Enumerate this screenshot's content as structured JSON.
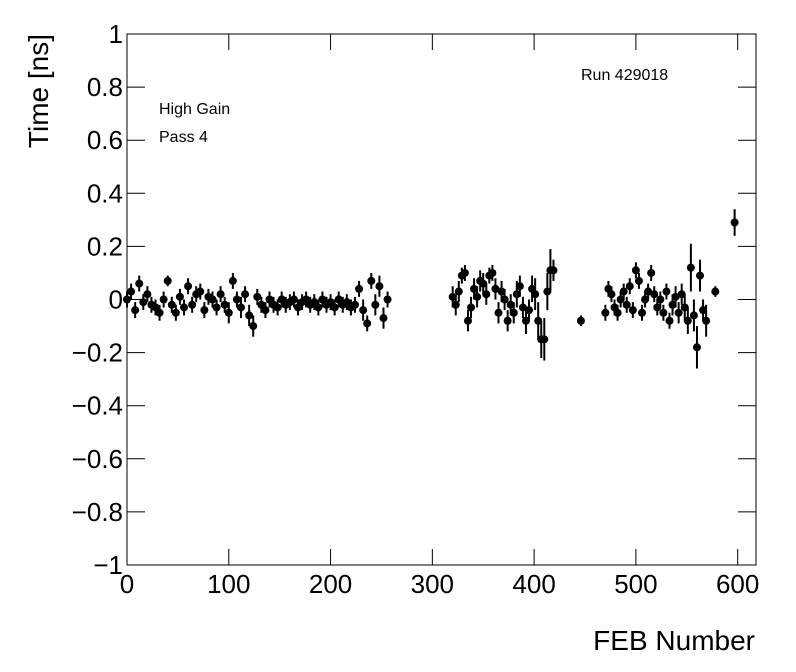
{
  "chart_data": {
    "type": "scatter",
    "x_label": "FEB Number",
    "y_label": "Time [ns]",
    "annotations": [
      "Run 429018",
      "High Gain",
      "Pass 4"
    ],
    "xlim": [
      0,
      618
    ],
    "ylim": [
      -1,
      1
    ],
    "xticks": [
      0,
      100,
      200,
      300,
      400,
      500,
      600
    ],
    "yticks": [
      {
        "value": -1,
        "label": "−1"
      },
      {
        "value": -0.8,
        "label": "−0.8"
      },
      {
        "value": -0.6,
        "label": "−0.6"
      },
      {
        "value": -0.4,
        "label": "−0.4"
      },
      {
        "value": -0.2,
        "label": "−0.2"
      },
      0,
      0.2,
      0.4,
      0.6,
      0.8,
      1
    ],
    "color": "#000000",
    "x": [
      0,
      4,
      8,
      12,
      16,
      20,
      24,
      28,
      32,
      36,
      40,
      44,
      48,
      52,
      56,
      60,
      64,
      68,
      72,
      76,
      80,
      84,
      88,
      92,
      96,
      100,
      104,
      108,
      112,
      116,
      120,
      124,
      128,
      132,
      136,
      140,
      144,
      148,
      152,
      156,
      160,
      164,
      168,
      172,
      176,
      180,
      184,
      188,
      192,
      196,
      200,
      204,
      208,
      212,
      216,
      220,
      224,
      228,
      232,
      236,
      240,
      244,
      248,
      252,
      256,
      320,
      323,
      326,
      329,
      332,
      335,
      338,
      341,
      344,
      347,
      350,
      353,
      356,
      359,
      362,
      365,
      368,
      371,
      374,
      377,
      380,
      383,
      386,
      389,
      392,
      395,
      398,
      401,
      404,
      407,
      410,
      413,
      416,
      419,
      446,
      470,
      473,
      476,
      479,
      482,
      485,
      488,
      491,
      494,
      497,
      500,
      503,
      506,
      509,
      512,
      515,
      518,
      521,
      524,
      527,
      530,
      533,
      536,
      539,
      542,
      545,
      548,
      551,
      554,
      557,
      560,
      563,
      566,
      569,
      578,
      597
    ],
    "y": [
      0,
      0.03,
      -0.04,
      0.06,
      -0.01,
      0.02,
      -0.02,
      -0.03,
      -0.05,
      0,
      0.07,
      -0.02,
      -0.05,
      0.01,
      -0.03,
      0.05,
      -0.02,
      0.02,
      0.03,
      -0.04,
      0.01,
      0,
      -0.03,
      0.02,
      -0.02,
      -0.05,
      0.07,
      0,
      -0.03,
      0.02,
      -0.06,
      -0.1,
      0.01,
      -0.02,
      -0.04,
      0,
      -0.02,
      -0.03,
      0,
      -0.02,
      -0.01,
      0,
      -0.03,
      -0.01,
      0,
      -0.02,
      -0.01,
      -0.03,
      0,
      -0.02,
      -0.01,
      -0.03,
      0,
      -0.02,
      -0.01,
      -0.03,
      -0.02,
      0.04,
      -0.04,
      -0.09,
      0.07,
      -0.02,
      0.05,
      -0.07,
      0,
      0.01,
      -0.02,
      0.03,
      0.09,
      0.1,
      -0.08,
      -0.03,
      0.04,
      0.01,
      0.07,
      0.06,
      0.02,
      0.09,
      0.1,
      0.04,
      -0.05,
      0.03,
      0,
      -0.08,
      -0.02,
      -0.05,
      0.02,
      0.05,
      -0.03,
      -0.08,
      -0.04,
      0.04,
      0.02,
      -0.08,
      -0.15,
      -0.15,
      0.03,
      0.11,
      0.11,
      -0.08,
      -0.05,
      0.04,
      0.02,
      -0.03,
      -0.05,
      0,
      0.03,
      -0.02,
      0.05,
      -0.04,
      0.11,
      0.07,
      -0.05,
      0,
      0.03,
      0.1,
      0.02,
      -0.03,
      0,
      -0.05,
      0.03,
      -0.08,
      -0.02,
      0.01,
      -0.05,
      0.02,
      -0.03,
      -0.08,
      0.12,
      -0.06,
      -0.18,
      0.09,
      -0.04,
      -0.08,
      0.03,
      0.29
    ],
    "errors": [
      0.03,
      0.03,
      0.03,
      0.03,
      0.03,
      0.03,
      0.03,
      0.03,
      0.03,
      0.03,
      0.02,
      0.03,
      0.03,
      0.03,
      0.03,
      0.03,
      0.03,
      0.03,
      0.03,
      0.03,
      0.03,
      0.03,
      0.03,
      0.03,
      0.03,
      0.04,
      0.03,
      0.03,
      0.04,
      0.03,
      0.04,
      0.04,
      0.03,
      0.03,
      0.03,
      0.03,
      0.03,
      0.03,
      0.03,
      0.03,
      0.03,
      0.03,
      0.03,
      0.03,
      0.03,
      0.03,
      0.03,
      0.03,
      0.03,
      0.03,
      0.03,
      0.03,
      0.03,
      0.03,
      0.03,
      0.03,
      0.03,
      0.03,
      0.04,
      0.03,
      0.03,
      0.04,
      0.04,
      0.04,
      0.03,
      0.04,
      0.04,
      0.04,
      0.03,
      0.03,
      0.04,
      0.04,
      0.04,
      0.04,
      0.04,
      0.04,
      0.04,
      0.03,
      0.03,
      0.04,
      0.04,
      0.04,
      0.04,
      0.04,
      0.04,
      0.04,
      0.05,
      0.04,
      0.04,
      0.05,
      0.04,
      0.05,
      0.06,
      0.07,
      0.07,
      0.08,
      0.07,
      0.08,
      0.04,
      0.02,
      0.03,
      0.03,
      0.03,
      0.03,
      0.03,
      0.03,
      0.03,
      0.03,
      0.03,
      0.03,
      0.03,
      0.03,
      0.03,
      0.03,
      0.03,
      0.03,
      0.03,
      0.03,
      0.03,
      0.03,
      0.03,
      0.03,
      0.04,
      0.04,
      0.04,
      0.04,
      0.05,
      0.05,
      0.09,
      0.06,
      0.08,
      0.06,
      0.04,
      0.06,
      0.02,
      0.05
    ]
  }
}
